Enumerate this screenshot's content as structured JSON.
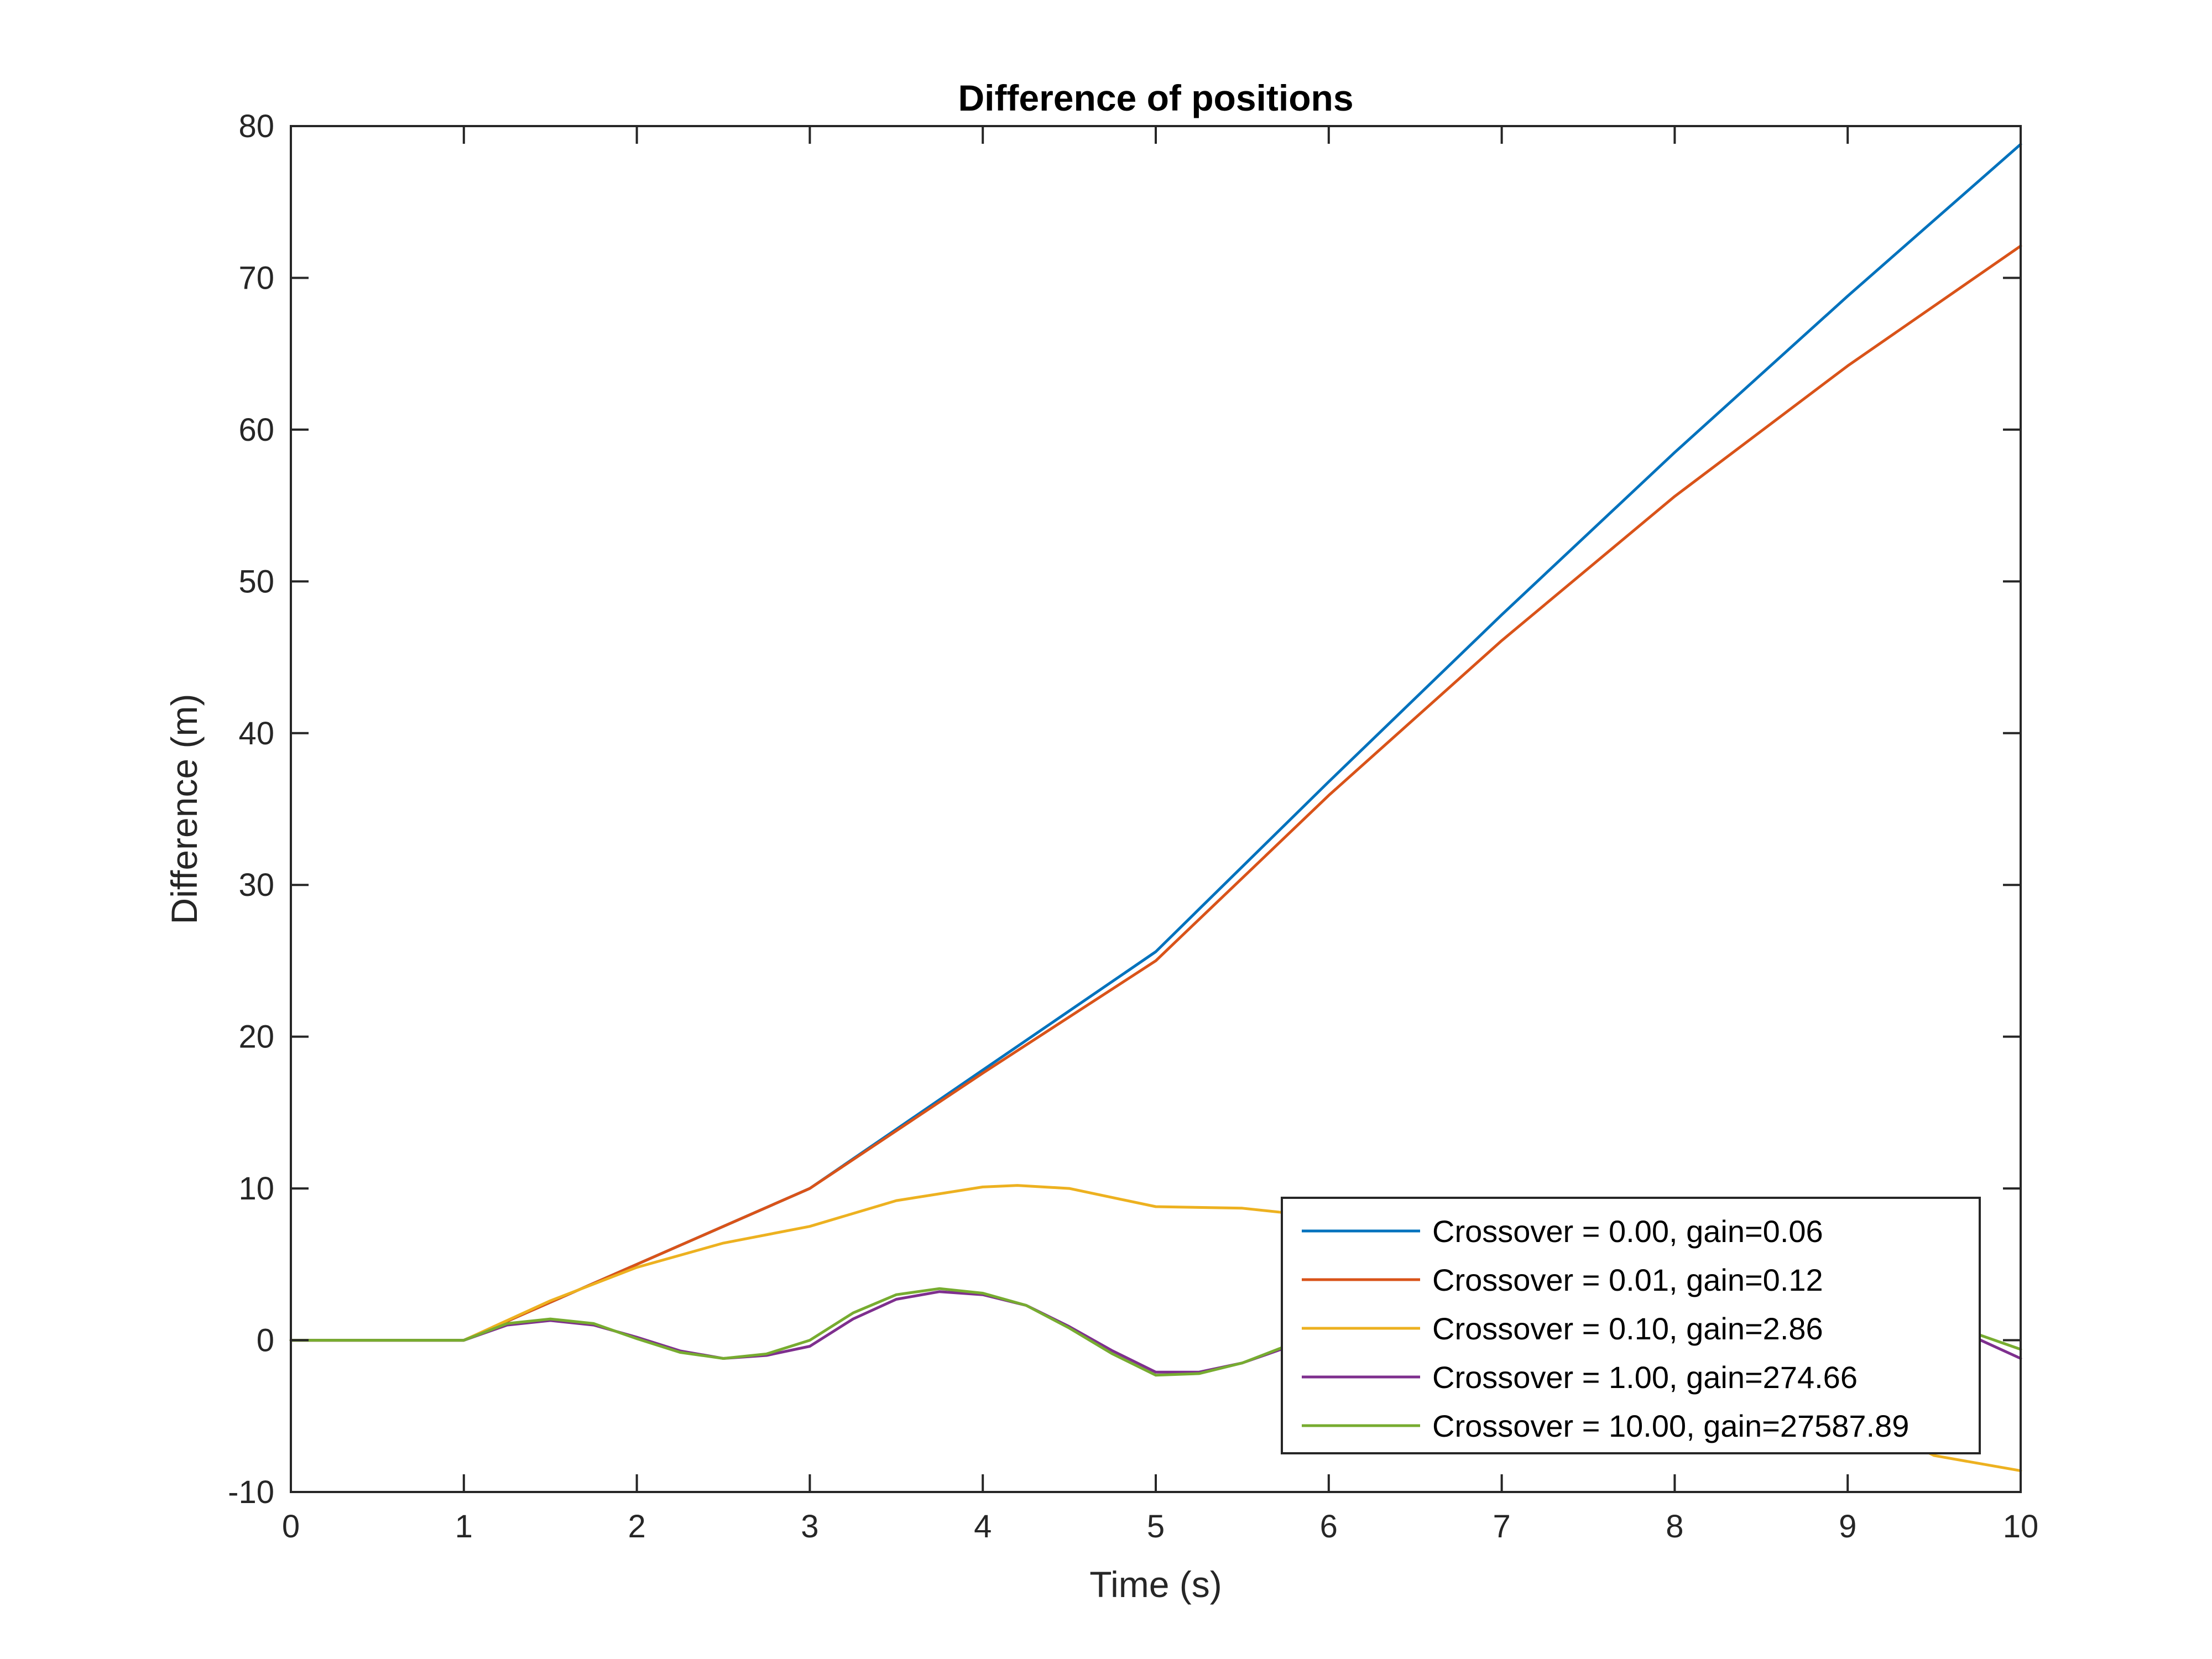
{
  "chart_data": {
    "type": "line",
    "title": "Difference of positions",
    "xlabel": "Time (s)",
    "ylabel": "Difference (m)",
    "xlim": [
      0,
      10
    ],
    "ylim": [
      -10,
      80
    ],
    "xticks": [
      "0",
      "1",
      "2",
      "3",
      "4",
      "5",
      "6",
      "7",
      "8",
      "9",
      "10"
    ],
    "yticks": [
      "-10",
      "0",
      "10",
      "20",
      "30",
      "40",
      "50",
      "60",
      "70",
      "80"
    ],
    "grid": false,
    "legend_position": "bottom-right",
    "series": [
      {
        "name": "Crossover = 0.00, gain=0.06",
        "color": "#0072BD",
        "x": [
          0,
          1,
          2,
          3,
          4,
          5,
          6,
          7,
          8,
          9,
          10
        ],
        "y": [
          0,
          0,
          5,
          10,
          17.8,
          25.6,
          36.8,
          47.8,
          58.5,
          68.8,
          78.8
        ]
      },
      {
        "name": "Crossover = 0.01, gain=0.12",
        "color": "#D95319",
        "x": [
          0,
          1,
          2,
          3,
          4,
          5,
          6,
          7,
          8,
          9,
          10
        ],
        "y": [
          0,
          0,
          5,
          10,
          17.6,
          25.0,
          35.9,
          46.1,
          55.6,
          64.2,
          72.1
        ]
      },
      {
        "name": "Crossover = 0.10, gain=2.86",
        "color": "#EDB120",
        "x": [
          0,
          1,
          1.5,
          2,
          2.5,
          3,
          3.5,
          4,
          4.2,
          4.5,
          5,
          5.5,
          6,
          6.5,
          7,
          7.5,
          8,
          8.5,
          9,
          9.5,
          10
        ],
        "y": [
          0,
          0,
          2.6,
          4.8,
          6.4,
          7.5,
          9.2,
          10.1,
          10.2,
          10.0,
          8.8,
          8.7,
          8.1,
          7.0,
          5.5,
          3.5,
          1.2,
          -1.6,
          -4.8,
          -7.6,
          -8.6
        ]
      },
      {
        "name": "Crossover = 1.00, gain=274.66",
        "color": "#7E2F8E",
        "x": [
          0,
          1,
          1.25,
          1.5,
          1.75,
          2,
          2.25,
          2.5,
          2.75,
          3,
          3.25,
          3.5,
          3.75,
          4,
          4.25,
          4.5,
          4.75,
          5,
          5.25,
          5.5,
          5.75,
          6,
          6.25,
          6.5,
          6.75,
          7,
          7.25,
          7.5,
          7.75,
          8,
          8.25,
          8.5,
          8.75,
          9,
          9.25,
          9.5,
          9.75,
          10
        ],
        "y": [
          0,
          0,
          1.0,
          1.3,
          1.0,
          0.2,
          -0.7,
          -1.2,
          -1.0,
          -0.4,
          1.4,
          2.7,
          3.2,
          3.0,
          2.3,
          0.9,
          -0.7,
          -2.1,
          -2.1,
          -1.5,
          -0.5,
          0.7,
          1.8,
          2.7,
          3.0,
          2.9,
          2.4,
          1.5,
          0.4,
          -0.4,
          -0.2,
          0.5,
          1.4,
          2.0,
          1.9,
          1.0,
          0.1,
          -1.2
        ]
      },
      {
        "name": "Crossover = 10.00, gain=27587.89",
        "color": "#77AC30",
        "x": [
          0,
          1,
          1.25,
          1.5,
          1.75,
          2,
          2.25,
          2.5,
          2.75,
          3,
          3.25,
          3.5,
          3.75,
          4,
          4.25,
          4.5,
          4.75,
          5,
          5.25,
          5.5,
          5.75,
          6,
          6.25,
          6.5,
          6.75,
          7,
          7.25,
          7.5,
          7.75,
          8,
          8.25,
          8.5,
          8.75,
          9,
          9.25,
          9.5,
          9.75,
          10
        ],
        "y": [
          0,
          0,
          1.1,
          1.4,
          1.1,
          0.1,
          -0.8,
          -1.2,
          -0.9,
          0.0,
          1.8,
          3.0,
          3.4,
          3.1,
          2.3,
          0.8,
          -0.9,
          -2.3,
          -2.2,
          -1.5,
          -0.4,
          0.8,
          1.9,
          2.8,
          3.1,
          2.9,
          2.3,
          1.4,
          0.3,
          -0.3,
          -0.1,
          0.6,
          1.5,
          2.1,
          2.0,
          1.2,
          0.4,
          -0.6
        ]
      }
    ]
  }
}
